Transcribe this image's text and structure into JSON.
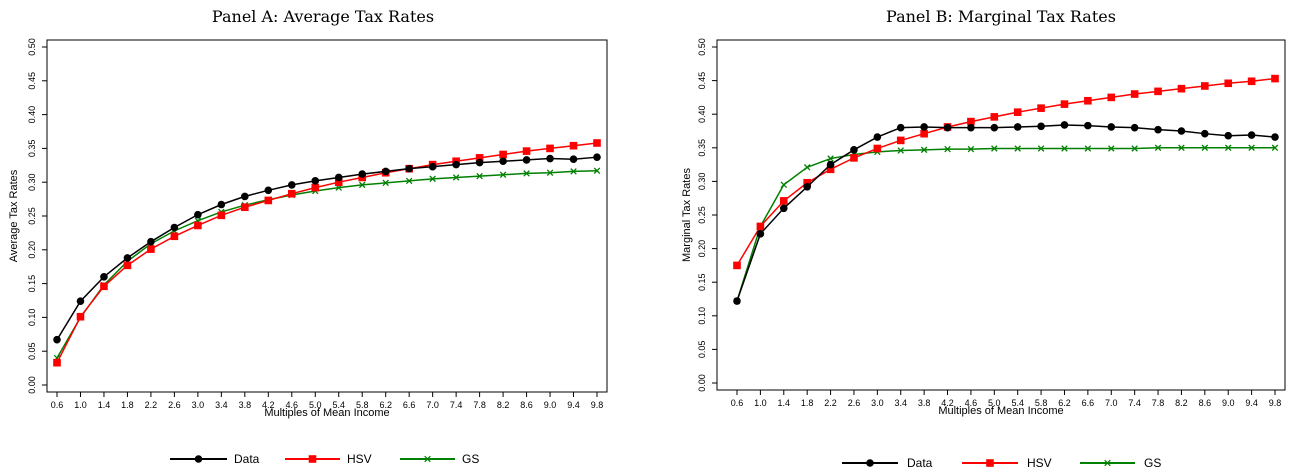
{
  "chart_data": [
    {
      "type": "line",
      "title": "Panel A: Average Tax Rates",
      "xlabel": "Multiples of Mean Income",
      "ylabel": "Average Tax Rates",
      "ylim": [
        0,
        0.5
      ],
      "yticks": [
        "0.00",
        "0.05",
        "0.10",
        "0.15",
        "0.20",
        "0.25",
        "0.30",
        "0.35",
        "0.40",
        "0.45",
        "0.50"
      ],
      "categories": [
        "0.6",
        "1.0",
        "1.4",
        "1.8",
        "2.2",
        "2.6",
        "3.0",
        "3.4",
        "3.8",
        "4.2",
        "4.6",
        "5.0",
        "5.4",
        "5.8",
        "6.2",
        "6.6",
        "7.0",
        "7.4",
        "7.8",
        "8.2",
        "8.6",
        "9.0",
        "9.4",
        "9.8"
      ],
      "legend_position": "bottom",
      "grid": false,
      "series": [
        {
          "name": "Data",
          "color": "#000000",
          "marker": "circle",
          "values": [
            0.067,
            0.124,
            0.16,
            0.188,
            0.212,
            0.233,
            0.252,
            0.267,
            0.279,
            0.288,
            0.296,
            0.302,
            0.307,
            0.312,
            0.316,
            0.32,
            0.323,
            0.326,
            0.329,
            0.331,
            0.333,
            0.335,
            0.334,
            0.337
          ]
        },
        {
          "name": "HSV",
          "color": "#ff0000",
          "marker": "square",
          "values": [
            0.033,
            0.101,
            0.146,
            0.177,
            0.201,
            0.22,
            0.236,
            0.251,
            0.263,
            0.273,
            0.283,
            0.292,
            0.3,
            0.307,
            0.314,
            0.32,
            0.326,
            0.331,
            0.336,
            0.341,
            0.346,
            0.35,
            0.354,
            0.358
          ]
        },
        {
          "name": "GS",
          "color": "#008000",
          "marker": "x",
          "values": [
            0.04,
            0.1,
            0.148,
            0.183,
            0.209,
            0.228,
            0.243,
            0.256,
            0.266,
            0.274,
            0.281,
            0.287,
            0.292,
            0.296,
            0.299,
            0.302,
            0.305,
            0.307,
            0.309,
            0.311,
            0.313,
            0.314,
            0.316,
            0.317
          ]
        }
      ]
    },
    {
      "type": "line",
      "title": "Panel B: Marginal Tax Rates",
      "xlabel": "Multiples of Mean Income",
      "ylabel": "Marginal Tax Rates",
      "ylim": [
        0,
        0.5
      ],
      "yticks": [
        "0.00",
        "0.05",
        "0.10",
        "0.15",
        "0.20",
        "0.25",
        "0.30",
        "0.35",
        "0.40",
        "0.45",
        "0.50"
      ],
      "categories": [
        "0.6",
        "1.0",
        "1.4",
        "1.8",
        "2.2",
        "2.6",
        "3.0",
        "3.4",
        "3.8",
        "4.2",
        "4.6",
        "5.0",
        "5.4",
        "5.8",
        "6.2",
        "6.6",
        "7.0",
        "7.4",
        "7.8",
        "8.2",
        "8.6",
        "9.0",
        "9.4",
        "9.8"
      ],
      "legend_position": "bottom",
      "grid": false,
      "series": [
        {
          "name": "Data",
          "color": "#000000",
          "marker": "circle",
          "values": [
            0.122,
            0.222,
            0.26,
            0.292,
            0.325,
            0.347,
            0.366,
            0.38,
            0.381,
            0.38,
            0.38,
            0.38,
            0.381,
            0.382,
            0.384,
            0.383,
            0.381,
            0.38,
            0.377,
            0.375,
            0.371,
            0.368,
            0.369,
            0.366
          ]
        },
        {
          "name": "HSV",
          "color": "#ff0000",
          "marker": "square",
          "values": [
            0.175,
            0.233,
            0.271,
            0.298,
            0.318,
            0.335,
            0.349,
            0.361,
            0.371,
            0.381,
            0.389,
            0.396,
            0.403,
            0.409,
            0.415,
            0.42,
            0.425,
            0.43,
            0.434,
            0.438,
            0.442,
            0.446,
            0.449,
            0.453
          ]
        },
        {
          "name": "GS",
          "color": "#008000",
          "marker": "x",
          "values": [
            0.122,
            0.233,
            0.295,
            0.321,
            0.334,
            0.34,
            0.344,
            0.346,
            0.347,
            0.348,
            0.348,
            0.349,
            0.349,
            0.349,
            0.349,
            0.349,
            0.349,
            0.349,
            0.35,
            0.35,
            0.35,
            0.35,
            0.35,
            0.35
          ]
        }
      ]
    }
  ]
}
